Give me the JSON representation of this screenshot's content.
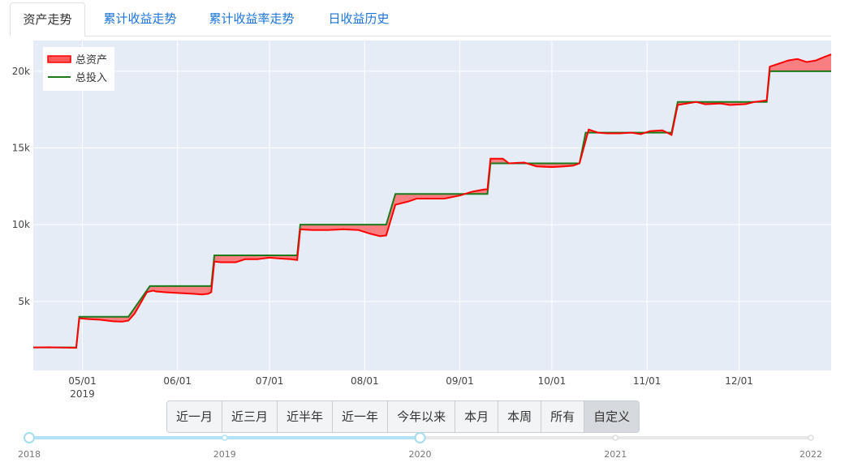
{
  "tabs": [
    {
      "label": "资产走势",
      "active": true
    },
    {
      "label": "累计收益走势",
      "active": false
    },
    {
      "label": "累计收益率走势",
      "active": false
    },
    {
      "label": "日收益历史",
      "active": false
    }
  ],
  "chart_data": {
    "type": "area",
    "title": "",
    "xlabel": "",
    "ylabel": "",
    "ylim": [
      500,
      22000
    ],
    "xrange": [
      "2019-04-15",
      "2019-12-31"
    ],
    "grid": true,
    "legend_position": "top-left",
    "y_ticks": [
      5000,
      10000,
      15000,
      20000
    ],
    "y_tick_labels": [
      "5k",
      "10k",
      "15k",
      "20k"
    ],
    "x_ticks": [
      "2019-05-01",
      "2019-06-01",
      "2019-07-01",
      "2019-08-01",
      "2019-09-01",
      "2019-10-01",
      "2019-11-01",
      "2019-12-01"
    ],
    "x_tick_labels": [
      "05/01",
      "06/01",
      "07/01",
      "08/01",
      "09/01",
      "10/01",
      "11/01",
      "12/01"
    ],
    "x_year_label": "2019",
    "series": [
      {
        "name": "总资产",
        "color": "#ff0000",
        "fill": "#ff5a5a",
        "points": [
          [
            "2019-04-15",
            2000
          ],
          [
            "2019-04-20",
            2010
          ],
          [
            "2019-04-25",
            1990
          ],
          [
            "2019-04-29",
            1980
          ],
          [
            "2019-04-30",
            3900
          ],
          [
            "2019-05-03",
            3850
          ],
          [
            "2019-05-07",
            3800
          ],
          [
            "2019-05-11",
            3700
          ],
          [
            "2019-05-14",
            3680
          ],
          [
            "2019-05-16",
            3750
          ],
          [
            "2019-05-18",
            4200
          ],
          [
            "2019-05-22",
            5600
          ],
          [
            "2019-05-24",
            5700
          ],
          [
            "2019-05-25",
            5650
          ],
          [
            "2019-05-28",
            5600
          ],
          [
            "2019-06-01",
            5550
          ],
          [
            "2019-06-06",
            5500
          ],
          [
            "2019-06-09",
            5450
          ],
          [
            "2019-06-11",
            5500
          ],
          [
            "2019-06-12",
            5600
          ],
          [
            "2019-06-13",
            7600
          ],
          [
            "2019-06-15",
            7550
          ],
          [
            "2019-06-20",
            7550
          ],
          [
            "2019-06-23",
            7750
          ],
          [
            "2019-06-27",
            7750
          ],
          [
            "2019-06-29",
            7800
          ],
          [
            "2019-07-01",
            7850
          ],
          [
            "2019-07-04",
            7800
          ],
          [
            "2019-07-08",
            7750
          ],
          [
            "2019-07-10",
            7700
          ],
          [
            "2019-07-11",
            9700
          ],
          [
            "2019-07-15",
            9650
          ],
          [
            "2019-07-20",
            9650
          ],
          [
            "2019-07-25",
            9700
          ],
          [
            "2019-07-30",
            9650
          ],
          [
            "2019-08-03",
            9400
          ],
          [
            "2019-08-06",
            9250
          ],
          [
            "2019-08-08",
            9300
          ],
          [
            "2019-08-11",
            11300
          ],
          [
            "2019-08-15",
            11500
          ],
          [
            "2019-08-18",
            11700
          ],
          [
            "2019-08-23",
            11700
          ],
          [
            "2019-08-27",
            11700
          ],
          [
            "2019-09-01",
            11900
          ],
          [
            "2019-09-05",
            12150
          ],
          [
            "2019-09-09",
            12300
          ],
          [
            "2019-09-10",
            12300
          ],
          [
            "2019-09-11",
            14300
          ],
          [
            "2019-09-15",
            14300
          ],
          [
            "2019-09-17",
            14000
          ],
          [
            "2019-09-22",
            14050
          ],
          [
            "2019-09-26",
            13800
          ],
          [
            "2019-10-01",
            13750
          ],
          [
            "2019-10-05",
            13800
          ],
          [
            "2019-10-08",
            13850
          ],
          [
            "2019-10-10",
            14000
          ],
          [
            "2019-10-13",
            16200
          ],
          [
            "2019-10-16",
            16000
          ],
          [
            "2019-10-19",
            15950
          ],
          [
            "2019-10-23",
            15950
          ],
          [
            "2019-10-27",
            16000
          ],
          [
            "2019-10-30",
            15900
          ],
          [
            "2019-11-02",
            16100
          ],
          [
            "2019-11-06",
            16150
          ],
          [
            "2019-11-09",
            15850
          ],
          [
            "2019-11-11",
            17800
          ],
          [
            "2019-11-14",
            17900
          ],
          [
            "2019-11-17",
            18000
          ],
          [
            "2019-11-20",
            17850
          ],
          [
            "2019-11-25",
            17900
          ],
          [
            "2019-11-28",
            17800
          ],
          [
            "2019-12-03",
            17850
          ],
          [
            "2019-12-06",
            18000
          ],
          [
            "2019-12-10",
            18100
          ],
          [
            "2019-12-11",
            20300
          ],
          [
            "2019-12-14",
            20500
          ],
          [
            "2019-12-17",
            20700
          ],
          [
            "2019-12-20",
            20800
          ],
          [
            "2019-12-23",
            20600
          ],
          [
            "2019-12-26",
            20700
          ],
          [
            "2019-12-29",
            20950
          ],
          [
            "2019-12-31",
            21100
          ]
        ]
      },
      {
        "name": "总投入",
        "color": "#1b7a1b",
        "points": [
          [
            "2019-04-15",
            2000
          ],
          [
            "2019-04-29",
            2000
          ],
          [
            "2019-04-30",
            4000
          ],
          [
            "2019-05-16",
            4000
          ],
          [
            "2019-05-23",
            6000
          ],
          [
            "2019-06-12",
            6000
          ],
          [
            "2019-06-13",
            8000
          ],
          [
            "2019-07-10",
            8000
          ],
          [
            "2019-07-11",
            10000
          ],
          [
            "2019-08-08",
            10000
          ],
          [
            "2019-08-11",
            12000
          ],
          [
            "2019-09-10",
            12000
          ],
          [
            "2019-09-11",
            14000
          ],
          [
            "2019-10-10",
            14000
          ],
          [
            "2019-10-12",
            16000
          ],
          [
            "2019-11-09",
            16000
          ],
          [
            "2019-11-11",
            18000
          ],
          [
            "2019-12-10",
            18000
          ],
          [
            "2019-12-11",
            20000
          ],
          [
            "2019-12-31",
            20000
          ]
        ]
      }
    ]
  },
  "range_buttons": [
    {
      "label": "近一月",
      "active": false
    },
    {
      "label": "近三月",
      "active": false
    },
    {
      "label": "近半年",
      "active": false
    },
    {
      "label": "近一年",
      "active": false
    },
    {
      "label": "今年以来",
      "active": false
    },
    {
      "label": "本月",
      "active": false
    },
    {
      "label": "本周",
      "active": false
    },
    {
      "label": "所有",
      "active": false
    },
    {
      "label": "自定义",
      "active": true
    }
  ],
  "slider": {
    "labels": [
      "2018",
      "2019",
      "2020",
      "2021",
      "2022"
    ],
    "start": "2018",
    "end": "2020"
  }
}
